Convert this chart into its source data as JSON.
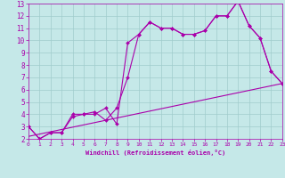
{
  "xlabel": "Windchill (Refroidissement éolien,°C)",
  "xlim": [
    0,
    23
  ],
  "ylim": [
    2,
    13
  ],
  "xticks": [
    0,
    1,
    2,
    3,
    4,
    5,
    6,
    7,
    8,
    9,
    10,
    11,
    12,
    13,
    14,
    15,
    16,
    17,
    18,
    19,
    20,
    21,
    22,
    23
  ],
  "yticks": [
    2,
    3,
    4,
    5,
    6,
    7,
    8,
    9,
    10,
    11,
    12,
    13
  ],
  "background_color": "#c5e8e8",
  "grid_color": "#a0cccc",
  "line_color": "#aa00aa",
  "line1_x": [
    0,
    1,
    2,
    3,
    4,
    5,
    6,
    7,
    8,
    9,
    10,
    11,
    12,
    13,
    14,
    15,
    16,
    17,
    18,
    19,
    20,
    21,
    22,
    23
  ],
  "line1_y": [
    3.0,
    2.0,
    2.5,
    2.5,
    4.0,
    4.0,
    4.0,
    4.5,
    3.2,
    9.8,
    10.5,
    11.5,
    11.0,
    11.0,
    10.5,
    10.5,
    10.8,
    12.0,
    12.0,
    13.2,
    11.2,
    10.2,
    7.5,
    6.5
  ],
  "line2_x": [
    0,
    1,
    2,
    3,
    4,
    5,
    6,
    7,
    8,
    9,
    10,
    11,
    12,
    13,
    14,
    15,
    16,
    17,
    18,
    19,
    20,
    21,
    22,
    23
  ],
  "line2_y": [
    3.0,
    2.0,
    2.5,
    2.5,
    3.8,
    4.0,
    4.2,
    3.5,
    4.5,
    7.0,
    10.5,
    11.5,
    11.0,
    11.0,
    10.5,
    10.5,
    10.8,
    12.0,
    12.0,
    13.2,
    11.2,
    10.2,
    7.5,
    6.5
  ],
  "line3_x": [
    0,
    23
  ],
  "line3_y": [
    2.2,
    6.5
  ]
}
